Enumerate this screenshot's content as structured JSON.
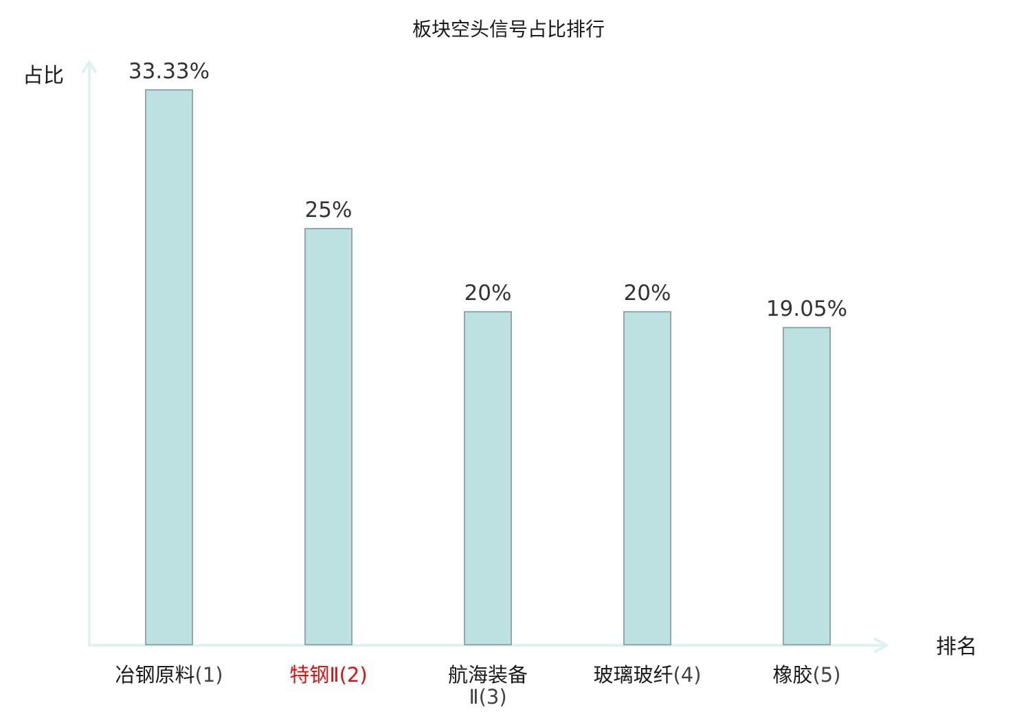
{
  "chart_data": {
    "type": "bar",
    "title": "板块空头信号占比排行",
    "xlabel": "排名",
    "ylabel": "占比",
    "categories": [
      {
        "name": "冶钢原料",
        "rank": "(1)",
        "line2": "",
        "highlight": false
      },
      {
        "name": "特钢Ⅱ",
        "rank": "(2)",
        "line2": "",
        "highlight": true
      },
      {
        "name": "航海装备",
        "rank": "",
        "line2": "Ⅱ(3)",
        "highlight": false
      },
      {
        "name": "玻璃玻纤",
        "rank": "(4)",
        "line2": "",
        "highlight": false
      },
      {
        "name": "橡胶",
        "rank": "(5)",
        "line2": "",
        "highlight": false
      }
    ],
    "values": [
      33.33,
      25,
      20,
      20,
      19.05
    ],
    "value_labels": [
      "33.33%",
      "25%",
      "20%",
      "20%",
      "19.05%"
    ],
    "ylim": [
      0,
      33.33
    ],
    "grid": false,
    "colors": {
      "bar_fill": "#bde0e1",
      "bar_stroke": "#8fa9aa",
      "axis": "#e0f2f0",
      "highlight_text": "#e01010",
      "category_text": "#1a1a1a",
      "rank_text": "#444444"
    }
  }
}
